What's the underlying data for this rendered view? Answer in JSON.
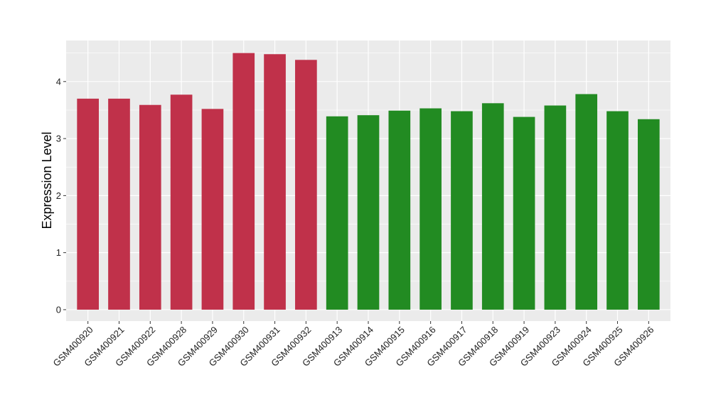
{
  "chart_data": {
    "type": "bar",
    "title": "",
    "xlabel": "",
    "ylabel": "Expression Level",
    "ylim": [
      -0.2,
      4.72
    ],
    "yticks": [
      0,
      1,
      2,
      3,
      4
    ],
    "ytick_labels": [
      "0",
      "1",
      "2",
      "3",
      "4"
    ],
    "grid": true,
    "legend": "none",
    "colors": {
      "panel_bg": "#ebebeb",
      "grid": "#ffffff"
    },
    "categories": [
      "GSM400920",
      "GSM400921",
      "GSM400922",
      "GSM400928",
      "GSM400929",
      "GSM400930",
      "GSM400931",
      "GSM400932",
      "GSM400913",
      "GSM400914",
      "GSM400915",
      "GSM400916",
      "GSM400917",
      "GSM400918",
      "GSM400919",
      "GSM400923",
      "GSM400924",
      "GSM400925",
      "GSM400926"
    ],
    "values": [
      3.7,
      3.7,
      3.59,
      3.77,
      3.52,
      4.5,
      4.48,
      4.38,
      3.39,
      3.41,
      3.49,
      3.53,
      3.48,
      3.62,
      3.38,
      3.58,
      3.78,
      3.48,
      3.34
    ],
    "bar_colors": [
      "#c0314a",
      "#c0314a",
      "#c0314a",
      "#c0314a",
      "#c0314a",
      "#c0314a",
      "#c0314a",
      "#c0314a",
      "#228b22",
      "#228b22",
      "#228b22",
      "#228b22",
      "#228b22",
      "#228b22",
      "#228b22",
      "#228b22",
      "#228b22",
      "#228b22",
      "#228b22"
    ]
  }
}
